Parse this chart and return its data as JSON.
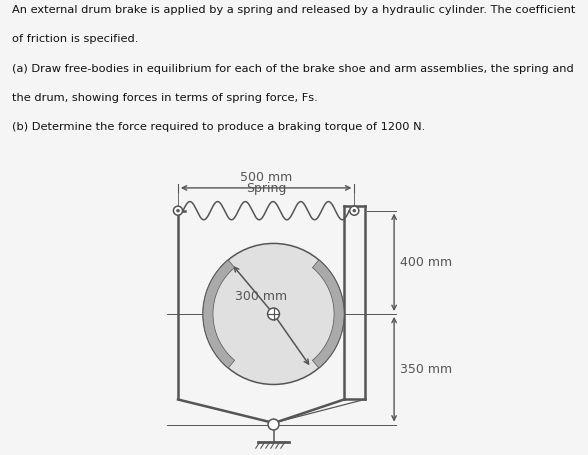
{
  "text_block": [
    "An external drum brake is applied by a spring and released by a hydraulic cylinder. The coefficient",
    "of friction is specified.",
    "(a) Draw free-bodies in equilibrium for each of the brake shoe and arm assemblies, the spring and",
    "the drum, showing forces in terms of spring force, Fs.",
    "(b) Determine the force required to produce a braking torque of 1200 N."
  ],
  "background_color": "#f5f5f5",
  "line_color": "#555555",
  "spring_label": "Spring",
  "dim_500": "500 mm",
  "dim_400": "400 mm",
  "dim_350": "350 mm",
  "dim_300": "300 mm",
  "font_size_text": 8.2,
  "font_size_dim": 9.0
}
